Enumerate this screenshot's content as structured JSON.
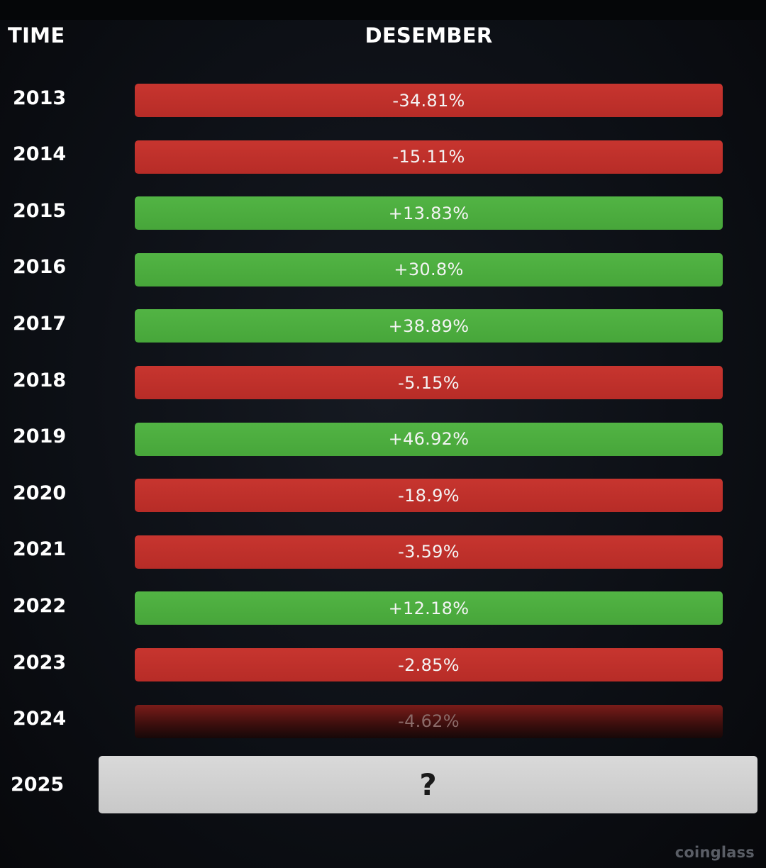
{
  "header": {
    "time_label": "TIME",
    "month_label": "DESEMBER"
  },
  "chart_data": {
    "type": "table",
    "categories": [
      "2013",
      "2014",
      "2015",
      "2016",
      "2017",
      "2018",
      "2019",
      "2020",
      "2021",
      "2022",
      "2023",
      "2024",
      "2025"
    ],
    "values": [
      -34.81,
      -15.11,
      13.83,
      30.8,
      38.89,
      -5.15,
      46.92,
      -18.9,
      -3.59,
      12.18,
      -2.85,
      -4.62,
      null
    ],
    "labels": [
      "-34.81%",
      "-15.11%",
      "+13.83%",
      "+30.8%",
      "+38.89%",
      "-5.15%",
      "+46.92%",
      "-18.9%",
      "-3.59%",
      "+12.18%",
      "-2.85%",
      "-4.62%",
      "?"
    ],
    "colors": {
      "negative": "#c0312c",
      "positive": "#4fae40",
      "unknown": "#d3d3d3"
    }
  },
  "watermark": "coinglass"
}
